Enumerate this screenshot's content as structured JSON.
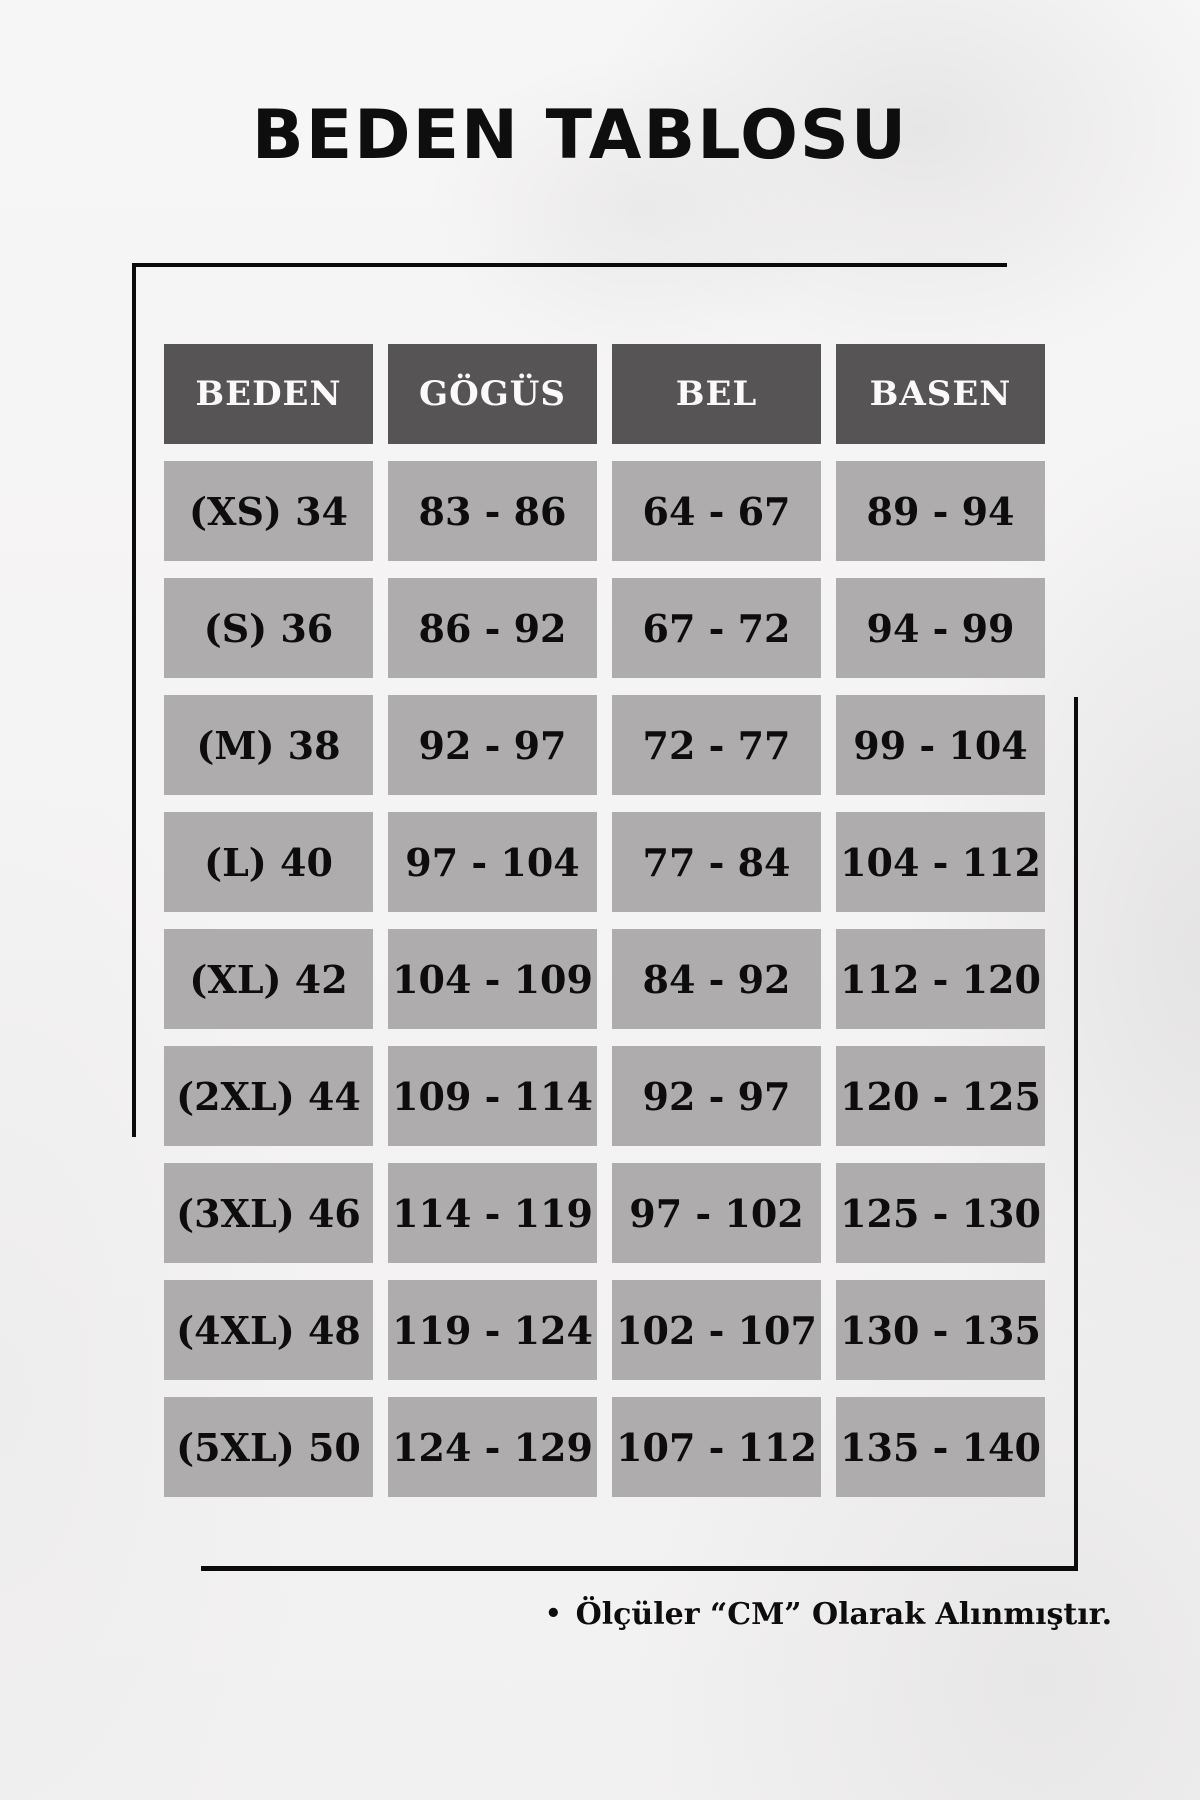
{
  "title": "BEDEN TABLOSU",
  "table": {
    "headers": [
      "BEDEN",
      "GÖGÜS",
      "BEL",
      "BASEN"
    ],
    "rows": [
      [
        "(XS) 34",
        "83 - 86",
        "64 - 67",
        "89 - 94"
      ],
      [
        "(S) 36",
        "86 - 92",
        "67 - 72",
        "94 - 99"
      ],
      [
        "(M) 38",
        "92 - 97",
        "72 - 77",
        "99 - 104"
      ],
      [
        "(L) 40",
        "97 - 104",
        "77 - 84",
        "104 - 112"
      ],
      [
        "(XL) 42",
        "104 - 109",
        "84 - 92",
        "112 - 120"
      ],
      [
        "(2XL) 44",
        "109 - 114",
        "92 - 97",
        "120 - 125"
      ],
      [
        "(3XL) 46",
        "114 - 119",
        "97 - 102",
        "125 - 130"
      ],
      [
        "(4XL) 48",
        "119 - 124",
        "102 - 107",
        "130 - 135"
      ],
      [
        "(5XL) 50",
        "124 - 129",
        "107 - 112",
        "135 - 140"
      ]
    ]
  },
  "footer": {
    "bullet": "•",
    "note": "Ölçüler “CM” Olarak Alınmıştır."
  },
  "colors": {
    "headerBg": "#575455",
    "headerText": "#fbfafa",
    "cellBg": "#aeacac",
    "cellText": "#0d0d0d",
    "line": "#0b0b0b",
    "titleText": "#0e0e0e"
  }
}
